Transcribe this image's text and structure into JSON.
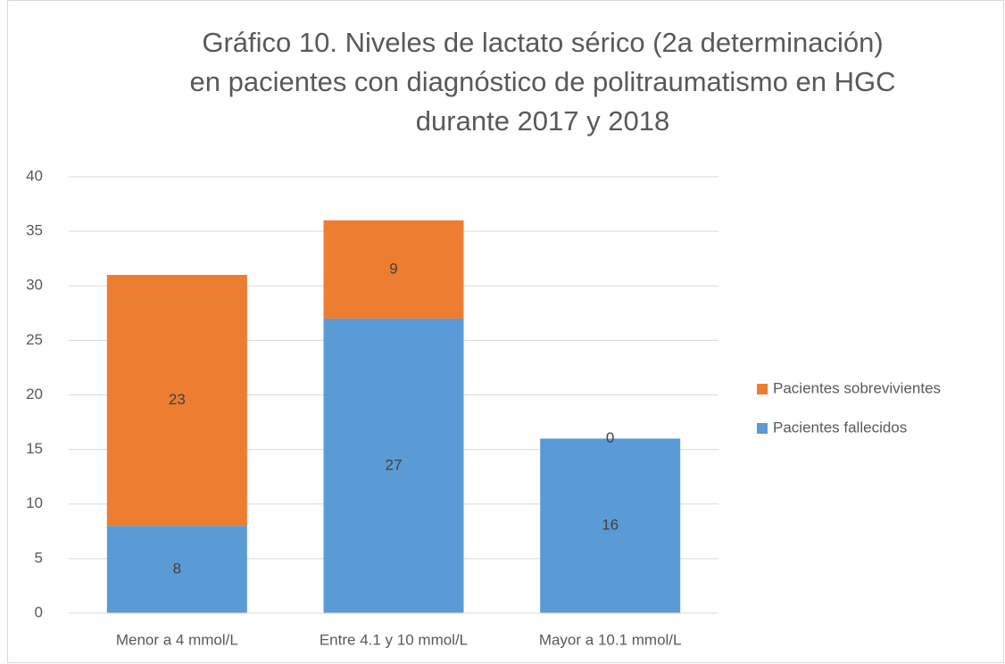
{
  "chart_data": {
    "type": "stacked_bar",
    "title": [
      "Gráfico 10. Niveles de lactato sérico (2a determinación)",
      "en pacientes con diagnóstico de politraumatismo en HGC",
      "durante 2017 y 2018"
    ],
    "categories": [
      "Menor a 4 mmol/L",
      "Entre 4.1 y 10 mmol/L",
      "Mayor a 10.1 mmol/L"
    ],
    "series": [
      {
        "name": "Pacientes fallecidos",
        "color": "#5b9bd5",
        "values": [
          8,
          27,
          16
        ]
      },
      {
        "name": "Pacientes sobrevivientes",
        "color": "#ed7d31",
        "values": [
          23,
          9,
          0
        ]
      }
    ],
    "ylim": [
      0,
      40
    ],
    "yticks": [
      0,
      5,
      10,
      15,
      20,
      25,
      30,
      35,
      40
    ],
    "grid": true,
    "legend": "right"
  }
}
